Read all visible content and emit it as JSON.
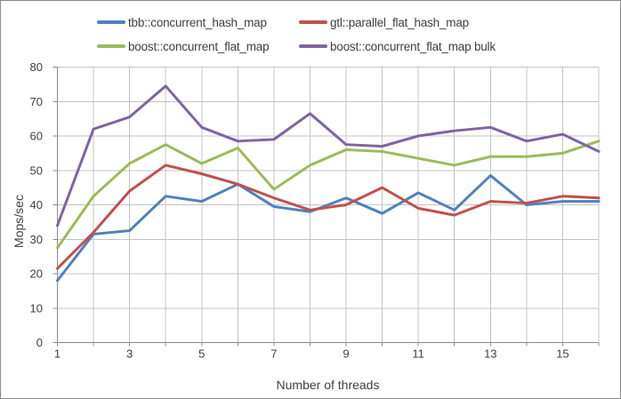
{
  "chart_data": {
    "type": "line",
    "title": "",
    "xlabel": "Number of threads",
    "ylabel": "Mops/sec",
    "x": [
      1,
      2,
      3,
      4,
      5,
      6,
      7,
      8,
      9,
      10,
      11,
      12,
      13,
      14,
      15,
      16
    ],
    "x_tick_labels_shown": [
      "1",
      "3",
      "5",
      "7",
      "9",
      "11",
      "13",
      "15"
    ],
    "ylim": [
      0,
      80
    ],
    "y_ticks": [
      0,
      10,
      20,
      30,
      40,
      50,
      60,
      70,
      80
    ],
    "grid": true,
    "legend_position": "top",
    "series": [
      {
        "name": "tbb::concurrent_hash_map",
        "color": "#4F81BD",
        "values": [
          18,
          31.5,
          32.5,
          42.5,
          41,
          46,
          39.5,
          38,
          42,
          37.5,
          43.5,
          38.5,
          48.5,
          40,
          41,
          41
        ]
      },
      {
        "name": "gtl::parallel_flat_hash_map",
        "color": "#C0504D",
        "values": [
          21.5,
          32,
          44,
          51.5,
          49,
          46,
          42,
          38.5,
          40,
          45,
          39,
          37,
          41,
          40.5,
          42.5,
          42
        ]
      },
      {
        "name": "boost::concurrent_flat_map",
        "color": "#9BBB59",
        "values": [
          27.5,
          42.5,
          52,
          57.5,
          52,
          56.5,
          44.5,
          51.5,
          56,
          55.5,
          53.5,
          51.5,
          54,
          54,
          55,
          58.5
        ]
      },
      {
        "name": "boost::concurrent_flat_map bulk",
        "color": "#8064A2",
        "values": [
          34,
          62,
          65.5,
          74.5,
          62.5,
          58.5,
          59,
          66.5,
          57.5,
          57,
          60,
          61.5,
          62.5,
          58.5,
          60.5,
          55.5
        ]
      }
    ]
  },
  "colors": {
    "grid": "#C4C4C4",
    "axis": "#8C8C8C",
    "text": "#3F3F3F",
    "frame_border": "#8C8C8C",
    "background": "#FFFFFF"
  }
}
